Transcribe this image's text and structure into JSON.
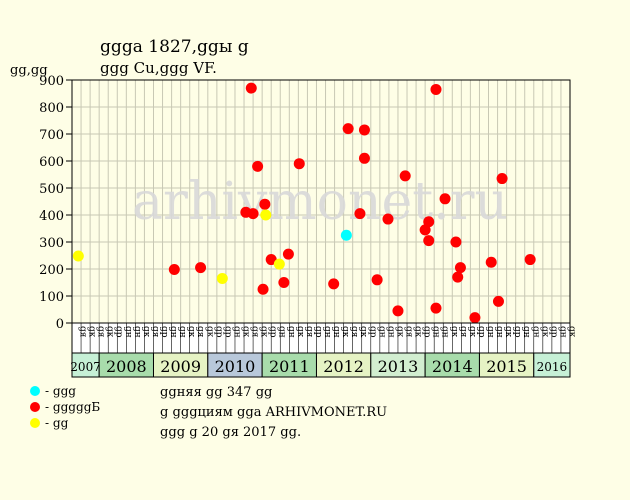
{
  "header": {
    "title": "ցցցa 1827,ցցы ց",
    "subtitle": "ցցց Cu,ցցց VF."
  },
  "chart_data": {
    "type": "scatter",
    "y_unit": "ցց,ցց",
    "ylim": [
      0,
      900
    ],
    "yticks": [
      "0",
      "100",
      "200",
      "300",
      "400",
      "500",
      "600",
      "700",
      "800",
      "900"
    ],
    "grid": true,
    "watermark": "arhivmonet.ru",
    "month_labels": [
      "ցя",
      "ցк",
      "ցя",
      "ցк",
      "ցр",
      "ցн",
      "ցн",
      "ցк",
      "ցя",
      "ցр",
      "ցн",
      "ցн",
      "ցк",
      "ցя",
      "ցк",
      "ցр",
      "ցр",
      "ցн",
      "ցк",
      "ցя",
      "ցк",
      "ցр",
      "ցн",
      "ցн",
      "ցк",
      "ցя",
      "ցр",
      "ցн",
      "ցн",
      "ցк",
      "ցя",
      "ցк",
      "ցр",
      "ցн",
      "ցн",
      "ցк",
      "ցя",
      "ցк",
      "ցр",
      "ցн",
      "ցн",
      "ցк",
      "ցя",
      "ցк",
      "ցр",
      "ցн",
      "ցн",
      "ցк",
      "ցр",
      "ցн",
      "ցн",
      "ցк",
      "ցр",
      "ցн",
      "ցк"
    ],
    "years": [
      {
        "label": "2007",
        "start": 0,
        "end": 3,
        "color": "#C6F0D6"
      },
      {
        "label": "2008",
        "start": 3,
        "end": 9,
        "color": "#A8DCAB"
      },
      {
        "label": "2009",
        "start": 9,
        "end": 15,
        "color": "#E6F3C4"
      },
      {
        "label": "2010",
        "start": 15,
        "end": 21,
        "color": "#B8C8DA"
      },
      {
        "label": "2011",
        "start": 21,
        "end": 27,
        "color": "#A8DCAB"
      },
      {
        "label": "2012",
        "start": 27,
        "end": 33,
        "color": "#E6F3C4"
      },
      {
        "label": "2013",
        "start": 33,
        "end": 39,
        "color": "#D2EED0"
      },
      {
        "label": "2014",
        "start": 39,
        "end": 45,
        "color": "#A8DCAB"
      },
      {
        "label": "2015",
        "start": 45,
        "end": 51,
        "color": "#E6F3C4"
      },
      {
        "label": "2016",
        "start": 51,
        "end": 55,
        "color": "#C6F0D6"
      }
    ],
    "series": [
      {
        "key": "cyan",
        "color": "#00FFFF",
        "label": "- ցցց",
        "points": [
          {
            "x": 30.3,
            "y": 325
          }
        ]
      },
      {
        "key": "red",
        "color": "#FF0000",
        "label": "- ցցցցցБ",
        "points": [
          {
            "x": 11.3,
            "y": 198
          },
          {
            "x": 14.2,
            "y": 205
          },
          {
            "x": 19.2,
            "y": 410
          },
          {
            "x": 19.8,
            "y": 870
          },
          {
            "x": 20.0,
            "y": 405
          },
          {
            "x": 20.5,
            "y": 580
          },
          {
            "x": 21.3,
            "y": 440
          },
          {
            "x": 21.1,
            "y": 125
          },
          {
            "x": 22.0,
            "y": 235
          },
          {
            "x": 23.4,
            "y": 150
          },
          {
            "x": 23.9,
            "y": 255
          },
          {
            "x": 25.1,
            "y": 590
          },
          {
            "x": 28.9,
            "y": 145
          },
          {
            "x": 30.5,
            "y": 720
          },
          {
            "x": 31.8,
            "y": 405
          },
          {
            "x": 32.3,
            "y": 610
          },
          {
            "x": 32.3,
            "y": 715
          },
          {
            "x": 33.7,
            "y": 160
          },
          {
            "x": 34.9,
            "y": 385
          },
          {
            "x": 36.0,
            "y": 45
          },
          {
            "x": 36.8,
            "y": 545
          },
          {
            "x": 39.0,
            "y": 345
          },
          {
            "x": 39.4,
            "y": 375
          },
          {
            "x": 39.4,
            "y": 305
          },
          {
            "x": 40.2,
            "y": 865
          },
          {
            "x": 40.2,
            "y": 55
          },
          {
            "x": 41.2,
            "y": 460
          },
          {
            "x": 42.4,
            "y": 300
          },
          {
            "x": 42.6,
            "y": 170
          },
          {
            "x": 42.9,
            "y": 205
          },
          {
            "x": 44.5,
            "y": 20
          },
          {
            "x": 46.3,
            "y": 225
          },
          {
            "x": 47.1,
            "y": 80
          },
          {
            "x": 47.5,
            "y": 535
          },
          {
            "x": 50.6,
            "y": 235
          }
        ]
      },
      {
        "key": "yellow",
        "color": "#FFFF00",
        "label": "- ցց",
        "points": [
          {
            "x": 0.7,
            "y": 248
          },
          {
            "x": 16.6,
            "y": 165
          },
          {
            "x": 21.4,
            "y": 400
          },
          {
            "x": 22.9,
            "y": 218
          }
        ]
      }
    ]
  },
  "notes": [
    "ցցняя ցց 347 ցց",
    "ց ցցցциям ցցa ARHIVMONET.RU",
    "ցցց ց 20 ցя 2017 ցց."
  ]
}
